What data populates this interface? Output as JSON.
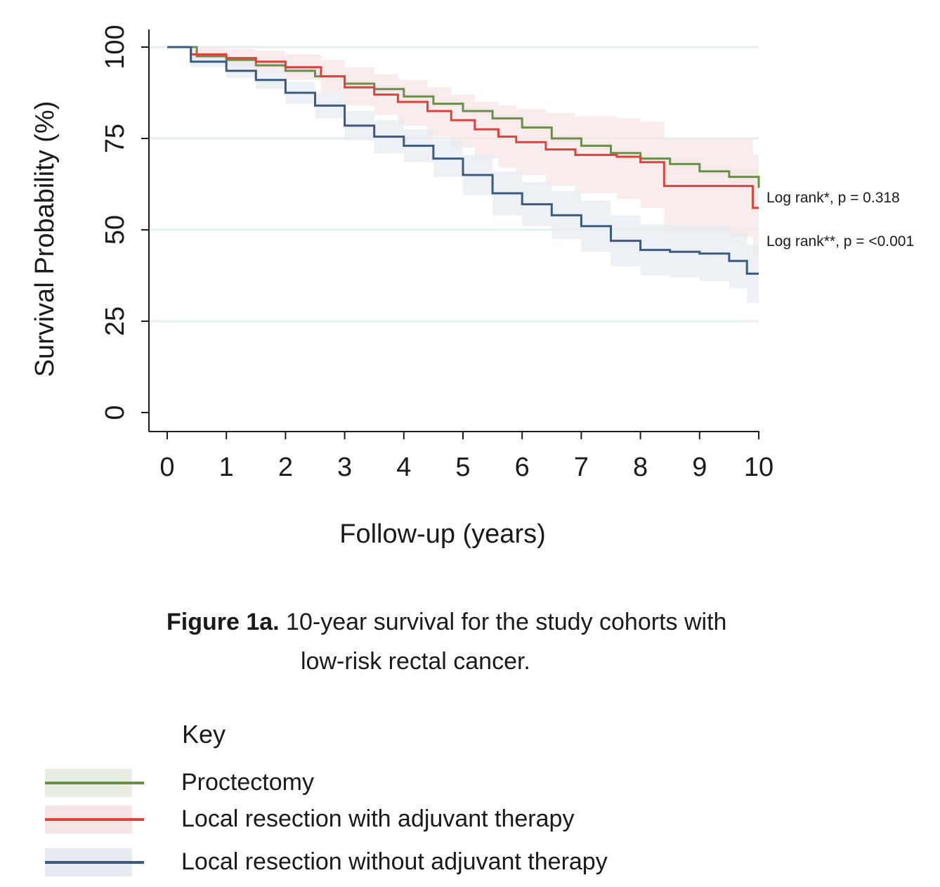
{
  "chart_data": {
    "type": "line",
    "subtype": "kaplan-meier step curves with confidence bands",
    "xlabel": "Follow-up (years)",
    "ylabel": "Survival Probability (%)",
    "xlim": [
      0,
      10
    ],
    "ylim": [
      0,
      100
    ],
    "xticks": [
      "0",
      "1",
      "2",
      "3",
      "4",
      "5",
      "6",
      "7",
      "8",
      "9",
      "10"
    ],
    "yticks": [
      "0",
      "25",
      "50",
      "75",
      "100"
    ],
    "grid": "horizontal",
    "series": [
      {
        "name": "Proctectomy",
        "color": "#6b8e4e",
        "band_color": "#e9eee2",
        "x": [
          0,
          0.5,
          1,
          1.5,
          2,
          2.5,
          3,
          3.5,
          4,
          4.5,
          5,
          5.5,
          6,
          6.5,
          7,
          7.5,
          8,
          8.5,
          9,
          9.5,
          10
        ],
        "y": [
          100,
          97.5,
          96.5,
          95,
          93.5,
          92,
          90,
          88.5,
          86.5,
          84.5,
          82.5,
          80.5,
          78,
          75,
          73,
          71,
          69.5,
          68,
          66,
          64.5,
          61.5
        ],
        "lower": [
          100,
          96.5,
          95.5,
          94,
          92.5,
          91,
          89,
          87.5,
          85.5,
          83.5,
          81.5,
          79.5,
          77,
          74,
          72,
          70,
          68.5,
          66.5,
          64.5,
          62.5,
          59
        ],
        "upper": [
          100,
          98.5,
          97.5,
          96,
          94.5,
          93,
          91,
          89.5,
          87.5,
          85.5,
          83.5,
          81.5,
          79,
          76,
          74,
          72,
          70.5,
          69.5,
          67.5,
          66.5,
          64
        ]
      },
      {
        "name": "Local resection with adjuvant therapy",
        "color": "#e0413a",
        "band_color": "#f5e6e5",
        "x": [
          0,
          0.4,
          1,
          1.5,
          2,
          2.6,
          3,
          3.5,
          3.9,
          4.4,
          4.8,
          5.2,
          5.6,
          5.9,
          6.4,
          6.9,
          7.6,
          8,
          8.4,
          9,
          9.5,
          9.9,
          10
        ],
        "y": [
          100,
          98,
          97,
          96,
          94.5,
          92,
          89,
          87,
          85,
          82.5,
          80,
          77.5,
          75.5,
          74,
          72,
          70.5,
          70,
          68.5,
          62,
          62,
          62,
          56,
          56
        ],
        "lower": [
          100,
          96,
          94.5,
          93,
          91,
          87.5,
          84,
          81.5,
          78.5,
          75.5,
          72.5,
          69.5,
          67,
          65,
          62,
          60,
          58.5,
          56,
          49,
          49,
          48,
          43,
          43
        ],
        "upper": [
          100,
          100,
          99.5,
          99,
          98,
          96.5,
          94.5,
          92.5,
          91,
          89,
          87,
          85,
          84,
          83,
          82,
          81,
          80.5,
          79.5,
          75,
          75,
          75,
          70.5,
          70.5
        ]
      },
      {
        "name": "Local resection without adjuvant therapy",
        "color": "#3b5b7e",
        "band_color": "#e7ebf1",
        "x": [
          0,
          0.4,
          1,
          1.5,
          2,
          2.5,
          3,
          3.5,
          4,
          4.5,
          5,
          5.5,
          6,
          6.5,
          7,
          7.5,
          8,
          8.5,
          9,
          9.5,
          9.8,
          10
        ],
        "y": [
          100,
          96,
          93.5,
          91,
          87.5,
          84,
          78.5,
          75.5,
          73,
          69.5,
          65,
          60,
          57,
          54,
          51,
          47,
          44.5,
          44,
          43.5,
          41.5,
          38,
          38
        ],
        "lower": [
          100,
          94.5,
          91.5,
          88.5,
          84.5,
          80.5,
          74.5,
          71,
          68.5,
          64.5,
          59.5,
          54,
          51,
          47.5,
          44,
          40,
          37.5,
          37,
          36,
          34,
          30,
          30
        ],
        "upper": [
          100,
          97.5,
          95.5,
          93.5,
          90.5,
          87.5,
          82.5,
          80,
          77.5,
          74.5,
          70.5,
          66,
          63,
          60.5,
          58,
          54,
          51.5,
          51,
          51,
          49,
          46,
          46
        ]
      }
    ],
    "annotations": [
      "Log rank*, p = 0.318",
      "Log rank**, p = <0.001"
    ]
  },
  "caption": {
    "lead": "Figure 1a.",
    "text_line1": " 10-year survival for the study cohorts with",
    "text_line2": "low-risk rectal cancer."
  },
  "key": {
    "title": "Key",
    "items": [
      {
        "label": "Proctectomy",
        "color": "#6b8e4e",
        "band_color": "#e9eee2"
      },
      {
        "label": "Local resection with adjuvant therapy",
        "color": "#e0413a",
        "band_color": "#f5e6e5"
      },
      {
        "label": "Local resection without adjuvant therapy",
        "color": "#3b5b7e",
        "band_color": "#e7ebf1"
      }
    ]
  }
}
